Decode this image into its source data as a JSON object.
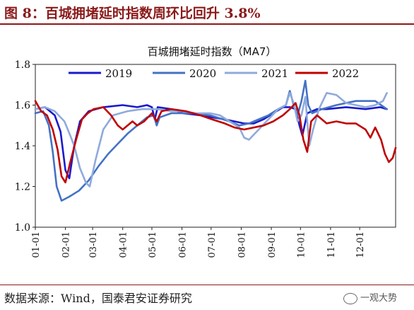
{
  "figure": {
    "title": "图 8：百城拥堵延时指数周环比回升 3.8%",
    "source": "数据来源：Wind，国泰君安证券研究",
    "watermark": "一观大势"
  },
  "chart_data": {
    "type": "line",
    "title": "百城拥堵延时指数（MA7）",
    "xlabel": "",
    "ylabel": "",
    "ylim": [
      1.0,
      1.8
    ],
    "yticks": [
      "1.0",
      "1.2",
      "1.4",
      "1.6",
      "1.8"
    ],
    "xticks": [
      "01-01",
      "02-01",
      "03-01",
      "04-01",
      "05-01",
      "06-01",
      "07-01",
      "08-01",
      "09-01",
      "10-01",
      "11-01",
      "12-01"
    ],
    "legend": "top",
    "colors": {
      "2019": "#1a1acc",
      "2020": "#4472c4",
      "2021": "#8faadc",
      "2022": "#c00000"
    },
    "series": [
      {
        "name": "2019",
        "points": [
          [
            0,
            1.58
          ],
          [
            10,
            1.59
          ],
          [
            20,
            1.55
          ],
          [
            26,
            1.47
          ],
          [
            31,
            1.28
          ],
          [
            35,
            1.24
          ],
          [
            40,
            1.4
          ],
          [
            46,
            1.52
          ],
          [
            55,
            1.57
          ],
          [
            70,
            1.59
          ],
          [
            90,
            1.6
          ],
          [
            105,
            1.59
          ],
          [
            115,
            1.6
          ],
          [
            120,
            1.59
          ],
          [
            123,
            1.53
          ],
          [
            126,
            1.59
          ],
          [
            140,
            1.58
          ],
          [
            152,
            1.56
          ],
          [
            170,
            1.55
          ],
          [
            182,
            1.54
          ],
          [
            195,
            1.53
          ],
          [
            205,
            1.52
          ],
          [
            215,
            1.51
          ],
          [
            225,
            1.51
          ],
          [
            235,
            1.53
          ],
          [
            245,
            1.56
          ],
          [
            255,
            1.59
          ],
          [
            262,
            1.59
          ],
          [
            268,
            1.58
          ],
          [
            272,
            1.5
          ],
          [
            275,
            1.45
          ],
          [
            280,
            1.56
          ],
          [
            290,
            1.58
          ],
          [
            300,
            1.58
          ],
          [
            320,
            1.59
          ],
          [
            340,
            1.58
          ],
          [
            355,
            1.59
          ],
          [
            362,
            1.58
          ]
        ]
      },
      {
        "name": "2020",
        "points": [
          [
            0,
            1.56
          ],
          [
            8,
            1.57
          ],
          [
            14,
            1.5
          ],
          [
            18,
            1.37
          ],
          [
            22,
            1.2
          ],
          [
            27,
            1.13
          ],
          [
            35,
            1.15
          ],
          [
            45,
            1.18
          ],
          [
            55,
            1.23
          ],
          [
            65,
            1.3
          ],
          [
            75,
            1.36
          ],
          [
            85,
            1.41
          ],
          [
            95,
            1.46
          ],
          [
            105,
            1.5
          ],
          [
            115,
            1.54
          ],
          [
            122,
            1.55
          ],
          [
            125,
            1.5
          ],
          [
            128,
            1.54
          ],
          [
            140,
            1.56
          ],
          [
            160,
            1.56
          ],
          [
            180,
            1.55
          ],
          [
            200,
            1.52
          ],
          [
            210,
            1.5
          ],
          [
            220,
            1.51
          ],
          [
            230,
            1.53
          ],
          [
            240,
            1.55
          ],
          [
            250,
            1.58
          ],
          [
            258,
            1.6
          ],
          [
            262,
            1.67
          ],
          [
            266,
            1.6
          ],
          [
            270,
            1.55
          ],
          [
            274,
            1.62
          ],
          [
            278,
            1.72
          ],
          [
            281,
            1.6
          ],
          [
            285,
            1.56
          ],
          [
            295,
            1.58
          ],
          [
            310,
            1.6
          ],
          [
            330,
            1.62
          ],
          [
            350,
            1.62
          ],
          [
            362,
            1.58
          ]
        ]
      },
      {
        "name": "2021",
        "points": [
          [
            0,
            1.58
          ],
          [
            10,
            1.59
          ],
          [
            20,
            1.57
          ],
          [
            30,
            1.52
          ],
          [
            36,
            1.45
          ],
          [
            40,
            1.4
          ],
          [
            46,
            1.29
          ],
          [
            52,
            1.22
          ],
          [
            56,
            1.2
          ],
          [
            62,
            1.33
          ],
          [
            70,
            1.48
          ],
          [
            80,
            1.55
          ],
          [
            95,
            1.57
          ],
          [
            110,
            1.58
          ],
          [
            125,
            1.58
          ],
          [
            140,
            1.57
          ],
          [
            152,
            1.57
          ],
          [
            165,
            1.56
          ],
          [
            180,
            1.56
          ],
          [
            190,
            1.55
          ],
          [
            200,
            1.52
          ],
          [
            210,
            1.49
          ],
          [
            215,
            1.44
          ],
          [
            220,
            1.43
          ],
          [
            230,
            1.48
          ],
          [
            240,
            1.53
          ],
          [
            250,
            1.58
          ],
          [
            258,
            1.6
          ],
          [
            262,
            1.66
          ],
          [
            266,
            1.61
          ],
          [
            270,
            1.52
          ],
          [
            274,
            1.55
          ],
          [
            278,
            1.64
          ],
          [
            282,
            1.4
          ],
          [
            286,
            1.48
          ],
          [
            292,
            1.58
          ],
          [
            300,
            1.66
          ],
          [
            310,
            1.65
          ],
          [
            320,
            1.61
          ],
          [
            330,
            1.6
          ],
          [
            340,
            1.59
          ],
          [
            350,
            1.6
          ],
          [
            358,
            1.62
          ],
          [
            362,
            1.66
          ]
        ]
      },
      {
        "name": "2022",
        "points": [
          [
            0,
            1.62
          ],
          [
            6,
            1.57
          ],
          [
            12,
            1.55
          ],
          [
            18,
            1.48
          ],
          [
            23,
            1.38
          ],
          [
            27,
            1.25
          ],
          [
            31,
            1.22
          ],
          [
            36,
            1.32
          ],
          [
            42,
            1.43
          ],
          [
            48,
            1.53
          ],
          [
            54,
            1.56
          ],
          [
            60,
            1.58
          ],
          [
            70,
            1.59
          ],
          [
            78,
            1.55
          ],
          [
            85,
            1.5
          ],
          [
            90,
            1.48
          ],
          [
            95,
            1.5
          ],
          [
            100,
            1.52
          ],
          [
            105,
            1.5
          ],
          [
            112,
            1.52
          ],
          [
            120,
            1.56
          ],
          [
            125,
            1.52
          ],
          [
            130,
            1.57
          ],
          [
            140,
            1.58
          ],
          [
            155,
            1.57
          ],
          [
            170,
            1.55
          ],
          [
            182,
            1.53
          ],
          [
            195,
            1.51
          ],
          [
            205,
            1.49
          ],
          [
            215,
            1.48
          ],
          [
            225,
            1.49
          ],
          [
            235,
            1.5
          ],
          [
            245,
            1.52
          ],
          [
            255,
            1.55
          ],
          [
            262,
            1.58
          ],
          [
            268,
            1.61
          ],
          [
            272,
            1.55
          ],
          [
            276,
            1.43
          ],
          [
            280,
            1.37
          ],
          [
            284,
            1.52
          ],
          [
            290,
            1.55
          ],
          [
            300,
            1.51
          ],
          [
            310,
            1.52
          ],
          [
            320,
            1.51
          ],
          [
            330,
            1.51
          ],
          [
            340,
            1.48
          ],
          [
            345,
            1.44
          ],
          [
            350,
            1.49
          ],
          [
            356,
            1.43
          ],
          [
            360,
            1.36
          ],
          [
            364,
            1.32
          ],
          [
            368,
            1.34
          ],
          [
            371,
            1.39
          ]
        ]
      }
    ]
  }
}
